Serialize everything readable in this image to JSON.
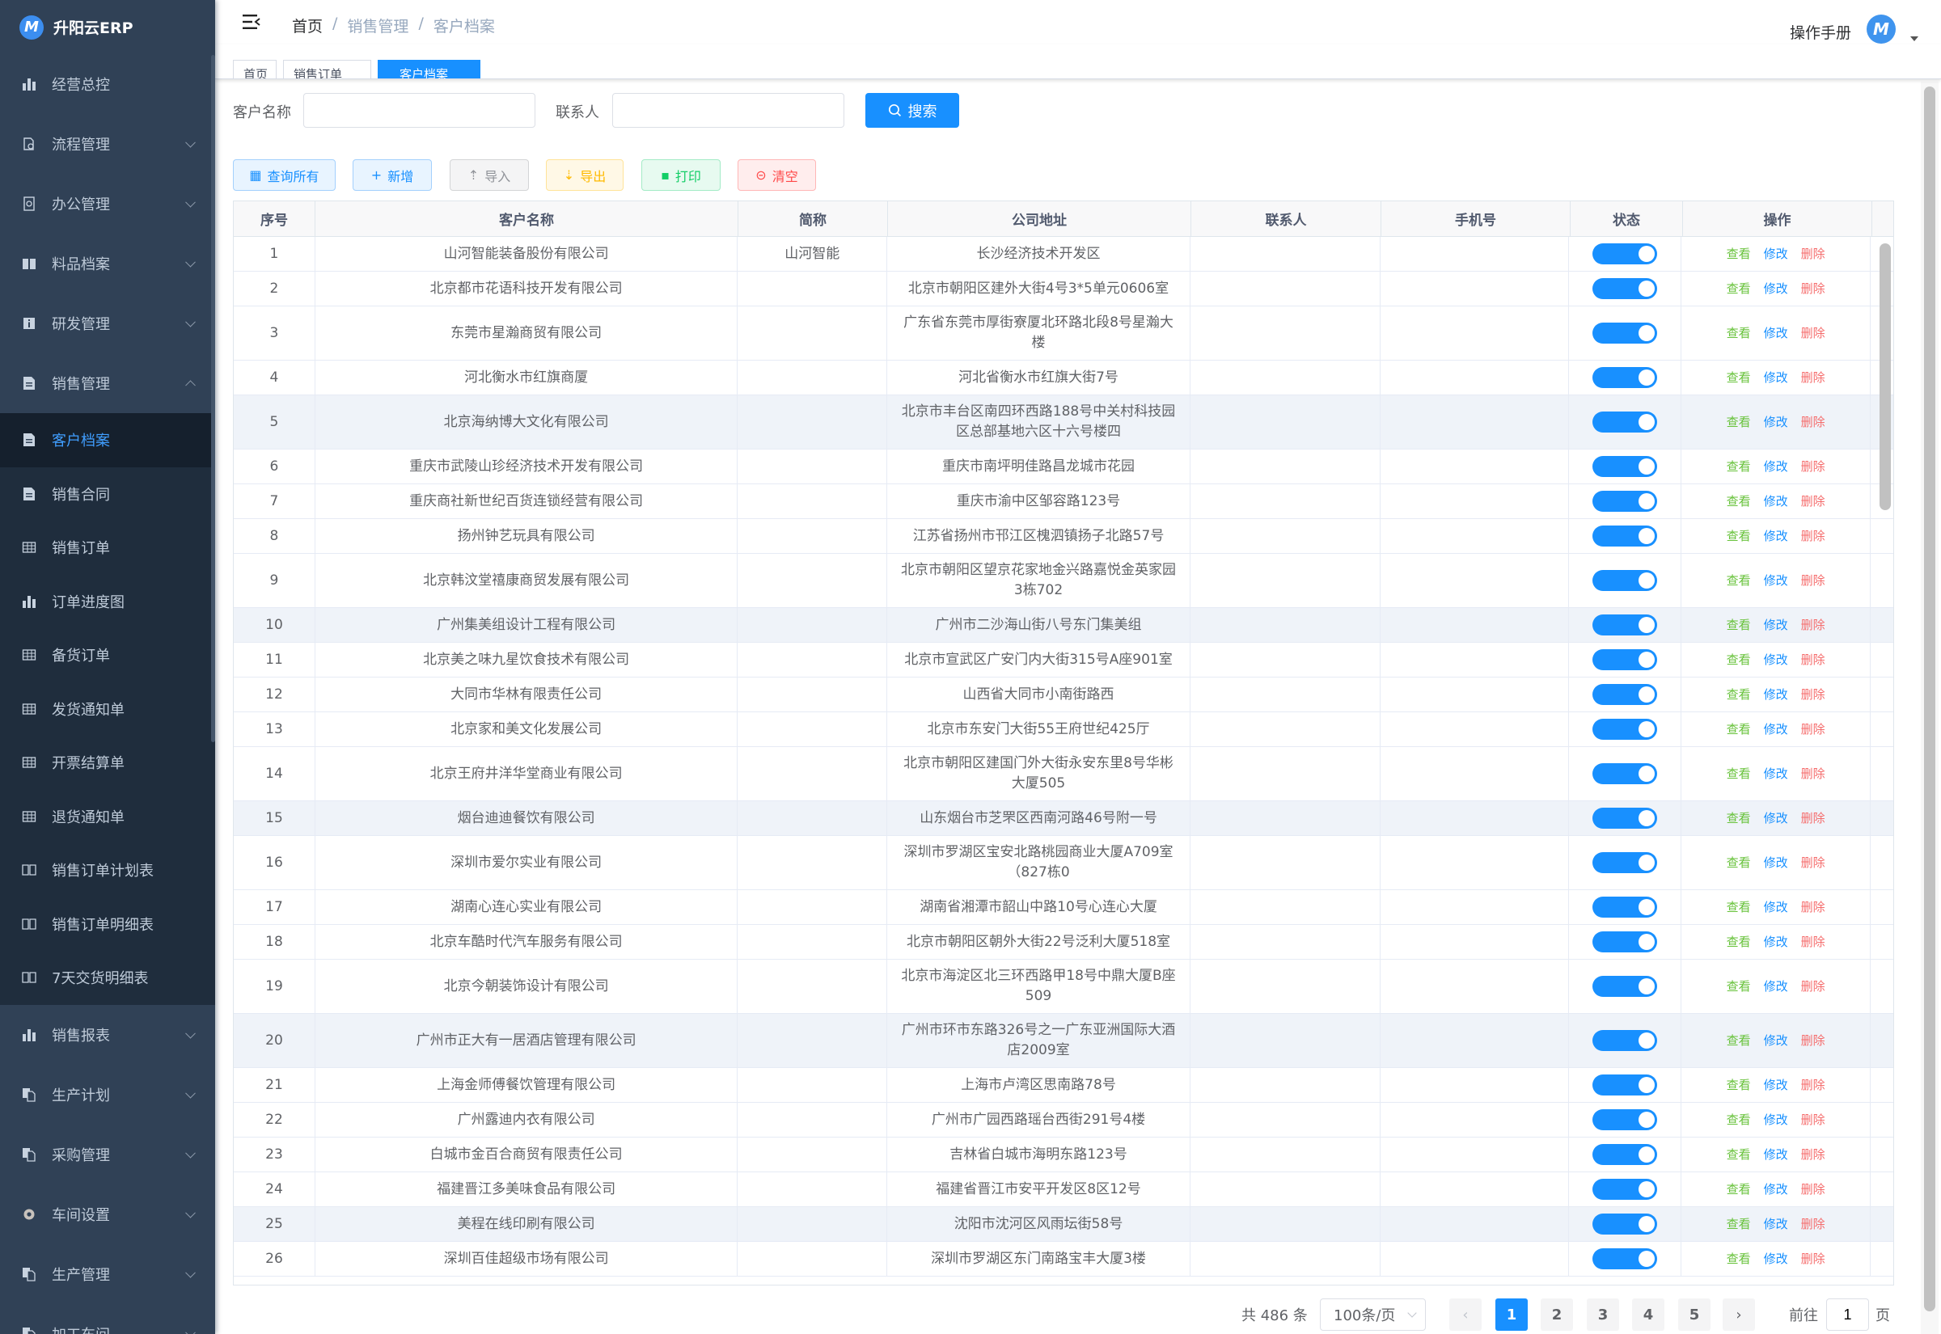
{
  "app": {
    "name": "升阳云ERP",
    "logo_letter": "M"
  },
  "sidebar": {
    "items": [
      {
        "label": "经营总控",
        "icon": "bar-chart-icon",
        "sub": false,
        "expandable": false
      },
      {
        "label": "流程管理",
        "icon": "flow-icon",
        "sub": false,
        "expandable": true
      },
      {
        "label": "办公管理",
        "icon": "office-icon",
        "sub": false,
        "expandable": true
      },
      {
        "label": "料品档案",
        "icon": "book-icon",
        "sub": false,
        "expandable": true
      },
      {
        "label": "研发管理",
        "icon": "info-icon",
        "sub": false,
        "expandable": true
      },
      {
        "label": "销售管理",
        "icon": "document-icon",
        "sub": false,
        "expandable": true,
        "expanded": true
      },
      {
        "label": "客户档案",
        "icon": "document-icon",
        "sub": true,
        "active": true
      },
      {
        "label": "销售合同",
        "icon": "document-icon",
        "sub": true
      },
      {
        "label": "销售订单",
        "icon": "table-icon",
        "sub": true
      },
      {
        "label": "订单进度图",
        "icon": "bar-chart-icon",
        "sub": true
      },
      {
        "label": "备货订单",
        "icon": "table-icon",
        "sub": true
      },
      {
        "label": "发货通知单",
        "icon": "table-icon",
        "sub": true
      },
      {
        "label": "开票结算单",
        "icon": "table-icon",
        "sub": true
      },
      {
        "label": "退货通知单",
        "icon": "table-icon",
        "sub": true
      },
      {
        "label": "销售订单计划表",
        "icon": "book-outline-icon",
        "sub": true
      },
      {
        "label": "销售订单明细表",
        "icon": "book-outline-icon",
        "sub": true
      },
      {
        "label": "7天交货明细表",
        "icon": "book-outline-icon",
        "sub": true
      },
      {
        "label": "销售报表",
        "icon": "bar-chart-icon",
        "sub": false,
        "expandable": true
      },
      {
        "label": "生产计划",
        "icon": "copy-icon",
        "sub": false,
        "expandable": true
      },
      {
        "label": "采购管理",
        "icon": "copy-icon",
        "sub": false,
        "expandable": true
      },
      {
        "label": "车间设置",
        "icon": "gear-icon",
        "sub": false,
        "expandable": true
      },
      {
        "label": "生产管理",
        "icon": "copy-icon",
        "sub": false,
        "expandable": true
      },
      {
        "label": "加工车间",
        "icon": "copy-icon",
        "sub": false,
        "expandable": true
      }
    ]
  },
  "breadcrumb": [
    "首页",
    "销售管理",
    "客户档案"
  ],
  "header": {
    "manual": "操作手册"
  },
  "tags": [
    {
      "label": "首页",
      "active": false
    },
    {
      "label": "销售订单",
      "active": false
    },
    {
      "label": "客户档案",
      "active": true
    }
  ],
  "search": {
    "customer_label": "客户名称",
    "customer_value": "",
    "customer_placeholder": "",
    "contact_label": "联系人",
    "contact_value": "",
    "contact_placeholder": "",
    "button": "搜索"
  },
  "toolbar": [
    {
      "label": "查询所有",
      "icon": "grid-icon",
      "color": "#1890ff"
    },
    {
      "label": "新增",
      "icon": "plus-icon",
      "color": "#1890ff"
    },
    {
      "label": "导入",
      "icon": "upload-icon",
      "color": "#909399"
    },
    {
      "label": "导出",
      "icon": "download-icon",
      "color": "#ffba00"
    },
    {
      "label": "打印",
      "icon": "print-icon",
      "color": "#13ce66"
    },
    {
      "label": "清空",
      "icon": "clear-icon",
      "color": "#ff4949"
    }
  ],
  "table": {
    "columns": [
      "序号",
      "客户名称",
      "简称",
      "公司地址",
      "联系人",
      "手机号",
      "状态",
      "操作"
    ],
    "actions": [
      {
        "label": "查看",
        "color": "#67c23a"
      },
      {
        "label": "修改",
        "color": "#1890ff"
      },
      {
        "label": "删除",
        "color": "#f56c6c"
      }
    ],
    "rows": [
      {
        "no": "1",
        "name": "山河智能装备股份有限公司",
        "short": "山河智能",
        "address": "长沙经济技术开发区",
        "contact": "",
        "phone": "",
        "status": true
      },
      {
        "no": "2",
        "name": "北京都市花语科技开发有限公司",
        "short": "",
        "address": "北京市朝阳区建外大街4号3*5单元0606室",
        "contact": "",
        "phone": "",
        "status": true
      },
      {
        "no": "3",
        "name": "东莞市星瀚商贸有限公司",
        "short": "",
        "address": "广东省东莞市厚街寮厦北环路北段8号星瀚大楼",
        "contact": "",
        "phone": "",
        "status": true
      },
      {
        "no": "4",
        "name": "河北衡水市红旗商厦",
        "short": "",
        "address": "河北省衡水市红旗大街7号",
        "contact": "",
        "phone": "",
        "status": true
      },
      {
        "no": "5",
        "name": "北京海纳博大文化有限公司",
        "short": "",
        "address": "北京市丰台区南四环西路188号中关村科技园区总部基地六区十六号楼四",
        "contact": "",
        "phone": "",
        "status": true
      },
      {
        "no": "6",
        "name": "重庆市武陵山珍经济技术开发有限公司",
        "short": "",
        "address": "重庆市南坪明佳路昌龙城市花园",
        "contact": "",
        "phone": "",
        "status": true
      },
      {
        "no": "7",
        "name": "重庆商社新世纪百货连锁经营有限公司",
        "short": "",
        "address": "重庆市渝中区邹容路123号",
        "contact": "",
        "phone": "",
        "status": true
      },
      {
        "no": "8",
        "name": "扬州钟艺玩具有限公司",
        "short": "",
        "address": "江苏省扬州市邗江区槐泗镇扬子北路57号",
        "contact": "",
        "phone": "",
        "status": true
      },
      {
        "no": "9",
        "name": "北京韩汶堂禧康商贸发展有限公司",
        "short": "",
        "address": "北京市朝阳区望京花家地金兴路嘉悦金英家园3栋702",
        "contact": "",
        "phone": "",
        "status": true
      },
      {
        "no": "10",
        "name": "广州集美组设计工程有限公司",
        "short": "",
        "address": "广州市二沙海山街八号东门集美组",
        "contact": "",
        "phone": "",
        "status": true
      },
      {
        "no": "11",
        "name": "北京美之味九星饮食技术有限公司",
        "short": "",
        "address": "北京市宣武区广安门内大街315号A座901室",
        "contact": "",
        "phone": "",
        "status": true
      },
      {
        "no": "12",
        "name": "大同市华林有限责任公司",
        "short": "",
        "address": "山西省大同市小南街路西",
        "contact": "",
        "phone": "",
        "status": true
      },
      {
        "no": "13",
        "name": "北京家和美文化发展公司",
        "short": "",
        "address": "北京市东安门大街55王府世纪425厅",
        "contact": "",
        "phone": "",
        "status": true
      },
      {
        "no": "14",
        "name": "北京王府井洋华堂商业有限公司",
        "short": "",
        "address": "北京市朝阳区建国门外大街永安东里8号华彬大厦505",
        "contact": "",
        "phone": "",
        "status": true
      },
      {
        "no": "15",
        "name": "烟台迪迪餐饮有限公司",
        "short": "",
        "address": "山东烟台市芝罘区西南河路46号附一号",
        "contact": "",
        "phone": "",
        "status": true
      },
      {
        "no": "16",
        "name": "深圳市爱尔实业有限公司",
        "short": "",
        "address": "深圳市罗湖区宝安北路桃园商业大厦A709室（827栋0",
        "contact": "",
        "phone": "",
        "status": true
      },
      {
        "no": "17",
        "name": "湖南心连心实业有限公司",
        "short": "",
        "address": "湖南省湘潭市韶山中路10号心连心大厦",
        "contact": "",
        "phone": "",
        "status": true
      },
      {
        "no": "18",
        "name": "北京车酷时代汽车服务有限公司",
        "short": "",
        "address": "北京市朝阳区朝外大街22号泛利大厦518室",
        "contact": "",
        "phone": "",
        "status": true
      },
      {
        "no": "19",
        "name": "北京今朝装饰设计有限公司",
        "short": "",
        "address": "北京市海淀区北三环西路甲18号中鼎大厦B座509",
        "contact": "",
        "phone": "",
        "status": true
      },
      {
        "no": "20",
        "name": "广州市正大有一居酒店管理有限公司",
        "short": "",
        "address": "广州市环市东路326号之一广东亚洲国际大酒店2009室",
        "contact": "",
        "phone": "",
        "status": true
      },
      {
        "no": "21",
        "name": "上海金师傅餐饮管理有限公司",
        "short": "",
        "address": "上海市卢湾区思南路78号",
        "contact": "",
        "phone": "",
        "status": true
      },
      {
        "no": "22",
        "name": "广州露迪内衣有限公司",
        "short": "",
        "address": "广州市广园西路瑶台西街291号4楼",
        "contact": "",
        "phone": "",
        "status": true
      },
      {
        "no": "23",
        "name": "白城市金百合商贸有限责任公司",
        "short": "",
        "address": "吉林省白城市海明东路123号",
        "contact": "",
        "phone": "",
        "status": true
      },
      {
        "no": "24",
        "name": "福建晋江多美味食品有限公司",
        "short": "",
        "address": "福建省晋江市安平开发区8区12号",
        "contact": "",
        "phone": "",
        "status": true
      },
      {
        "no": "25",
        "name": "美程在线印刷有限公司",
        "short": "",
        "address": "沈阳市沈河区风雨坛街58号",
        "contact": "",
        "phone": "",
        "status": true
      },
      {
        "no": "26",
        "name": "深圳百佳超级市场有限公司",
        "short": "",
        "address": "深圳市罗湖区东门南路宝丰大厦3楼",
        "contact": "",
        "phone": "",
        "status": true
      }
    ]
  },
  "pagination": {
    "total": "共 486 条",
    "page_size": "100条/页",
    "pages": [
      "1",
      "2",
      "3",
      "4",
      "5"
    ],
    "current": "1",
    "goto_label": "前往",
    "goto_value": "1",
    "goto_suffix": "页"
  },
  "colors": {
    "primary": "#1890ff",
    "sidebar": "#304156",
    "active_menu": "#409eff"
  }
}
